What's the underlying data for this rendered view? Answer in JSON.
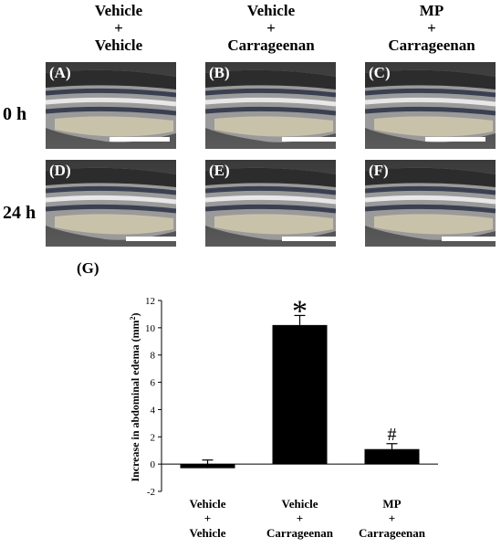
{
  "columns": [
    {
      "line1": "Vehicle",
      "line2": "+",
      "line3": "Vehicle"
    },
    {
      "line1": "Vehicle",
      "line2": "+",
      "line3": "Carrageenan"
    },
    {
      "line1": "MP",
      "line2": "+",
      "line3": "Carrageenan"
    }
  ],
  "rows": [
    "0 h",
    "24 h"
  ],
  "panels": [
    "(A)",
    "(B)",
    "(C)",
    "(D)",
    "(E)",
    "(F)"
  ],
  "panel_g_label": "(G)",
  "chart_data": {
    "type": "bar",
    "categories": [
      {
        "line1": "Vehicle",
        "line2": "+",
        "line3": "Vehicle"
      },
      {
        "line1": "Vehicle",
        "line2": "+",
        "line3": "Carrageenan"
      },
      {
        "line1": "MP",
        "line2": "+",
        "line3": "Carrageenan"
      }
    ],
    "values": [
      -0.3,
      10.2,
      1.1
    ],
    "errors": [
      0.6,
      0.7,
      0.4
    ],
    "annotations": [
      "",
      "*",
      "#"
    ],
    "ylabel": "Increase in abdominal edema (mm",
    "ylabel_sup": "2",
    "ylabel_close": ")",
    "ylim": [
      -2,
      12
    ],
    "yticks": [
      -2,
      0,
      2,
      4,
      6,
      8,
      10,
      12
    ],
    "bar_color": "#000000"
  }
}
